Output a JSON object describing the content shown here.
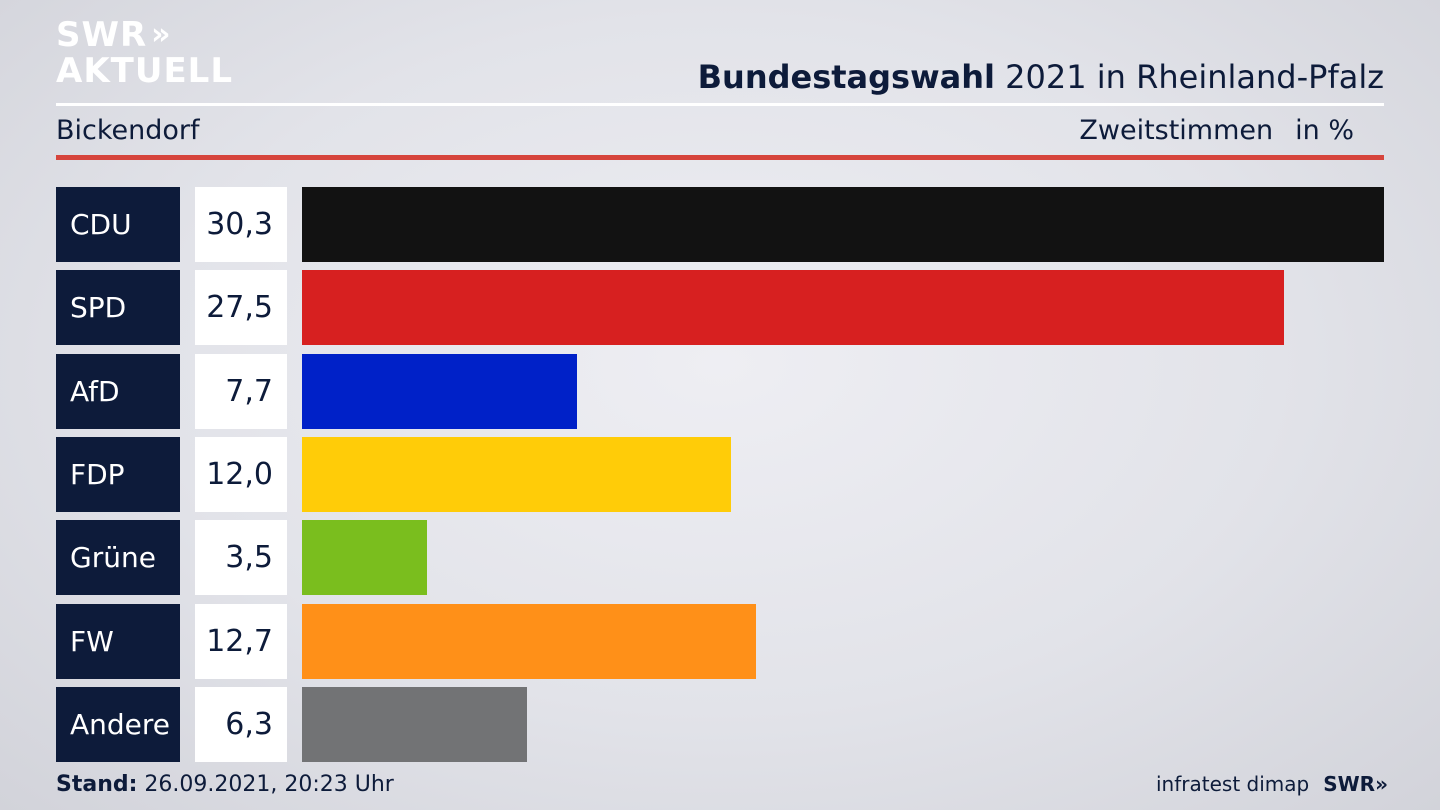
{
  "brand": {
    "logo_line1": "SWR",
    "logo_arrows": "»",
    "logo_line2": "AKTUELL"
  },
  "header": {
    "title_bold": "Bundestagswahl",
    "title_rest": " 2021 in Rheinland-Pfalz",
    "region": "Bickendorf",
    "metric": "Zweitstimmen",
    "unit": "in %"
  },
  "chart_data": {
    "type": "bar",
    "orientation": "horizontal",
    "categories": [
      "CDU",
      "SPD",
      "AfD",
      "FDP",
      "Grüne",
      "FW",
      "Andere"
    ],
    "values": [
      30.3,
      27.5,
      7.7,
      12.0,
      3.5,
      12.7,
      6.3
    ],
    "value_labels": [
      "30,3",
      "27,5",
      "7,7",
      "12,0",
      "3,5",
      "12,7",
      "6,3"
    ],
    "colors": [
      "#121212",
      "#d72020",
      "#0021c8",
      "#ffcc08",
      "#7abe1e",
      "#ff9018",
      "#727375"
    ],
    "xlim": [
      0,
      30.3
    ],
    "grid": false,
    "legend": "none"
  },
  "footer": {
    "stand_label": "Stand:",
    "stand_value": " 26.09.2021, 20:23 Uhr",
    "source": "infratest dimap",
    "brand": "SWR",
    "brand_arrows": "»"
  }
}
